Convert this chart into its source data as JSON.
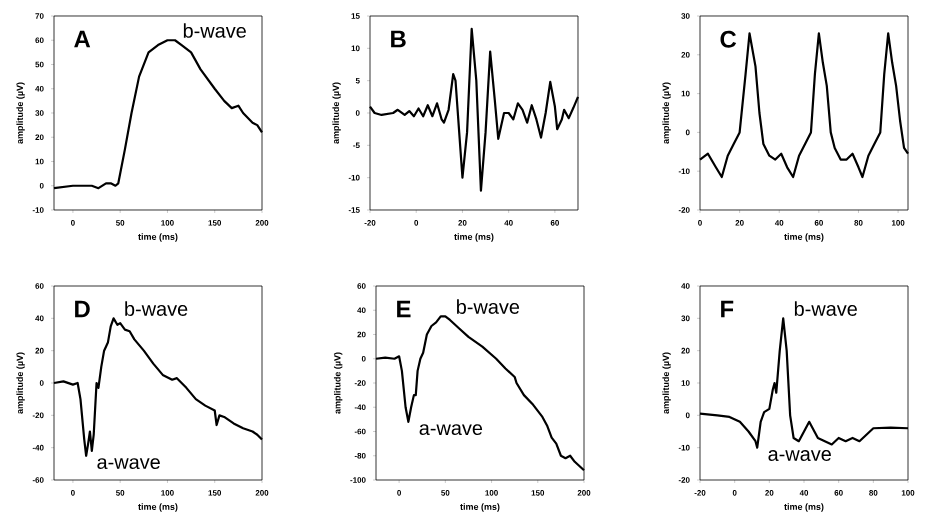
{
  "chart_data": [
    {
      "type": "line",
      "title": "A",
      "xlabel": "time (ms)",
      "ylabel": "amplitude (µV)",
      "color": "#000000",
      "xlim": [
        -20,
        200
      ],
      "xticks": [
        0,
        50,
        100,
        150,
        200
      ],
      "ylim": [
        -10,
        70
      ],
      "yticks": [
        -10,
        0,
        10,
        20,
        30,
        40,
        50,
        60,
        70
      ],
      "x": [
        -20,
        0,
        20,
        27,
        35,
        40,
        45,
        48,
        55,
        62,
        70,
        80,
        90,
        100,
        108,
        115,
        125,
        135,
        150,
        160,
        168,
        175,
        180,
        190,
        195,
        200
      ],
      "values": [
        -1,
        0,
        0,
        -1,
        1,
        1,
        0,
        1,
        15,
        30,
        45,
        55,
        58,
        60,
        60,
        58,
        55,
        48,
        40,
        35,
        32,
        33,
        30,
        26,
        25,
        22
      ],
      "annotations": [
        {
          "text": "b-wave",
          "x": 105,
          "y": 60
        }
      ]
    },
    {
      "type": "line",
      "title": "B",
      "xlabel": "time (ms)",
      "ylabel": "amplitude (µV)",
      "color": "#000000",
      "xlim": [
        -20,
        70
      ],
      "xticks": [
        -20,
        0,
        20,
        40,
        60
      ],
      "ylim": [
        -15,
        15
      ],
      "yticks": [
        -15,
        -10,
        -5,
        0,
        5,
        10,
        15
      ],
      "x": [
        -20,
        -18,
        -15,
        -10,
        -8,
        -5,
        -3,
        -1,
        1,
        3,
        5,
        7,
        9,
        11,
        12,
        14,
        16,
        17,
        19,
        20,
        22,
        24,
        26,
        28,
        30,
        32,
        34,
        35.5,
        38,
        40,
        42,
        44,
        46,
        48,
        50,
        52,
        54,
        56,
        58,
        60,
        61,
        63,
        64,
        66,
        68,
        70
      ],
      "values": [
        1,
        0,
        -0.3,
        0,
        0.5,
        -0.3,
        0.3,
        -0.5,
        0.7,
        -0.5,
        1.2,
        -0.5,
        1.5,
        -1,
        -1.5,
        0.5,
        6,
        5,
        -5,
        -10,
        -3,
        13,
        5,
        -12,
        -3,
        9.5,
        2,
        -4,
        0,
        0,
        -1,
        1.5,
        0.5,
        -1.5,
        1.2,
        -1,
        -3.8,
        0,
        4.8,
        1,
        -2.5,
        -1,
        0.5,
        -0.8,
        0.8,
        2.5
      ]
    },
    {
      "type": "line",
      "title": "C",
      "xlabel": "time (ms)",
      "ylabel": "amplitude (µV)",
      "color": "#000000",
      "xlim": [
        0,
        105
      ],
      "xticks": [
        0,
        20,
        40,
        60,
        80,
        100
      ],
      "ylim": [
        -20,
        30
      ],
      "yticks": [
        -20,
        -10,
        0,
        10,
        20,
        30
      ],
      "x": [
        0,
        4,
        8,
        11,
        14,
        17,
        20,
        23,
        25,
        28,
        30,
        32,
        35,
        38,
        41,
        44,
        47,
        50,
        53,
        56,
        58,
        60,
        62,
        64,
        66,
        68,
        71,
        74,
        77,
        80,
        82,
        85,
        88,
        91,
        93,
        95,
        97,
        99,
        101,
        103,
        105
      ],
      "values": [
        -7,
        -5.5,
        -9,
        -11.5,
        -6,
        -3,
        0,
        15,
        25.5,
        17,
        5,
        -3,
        -6,
        -7,
        -5.5,
        -9,
        -11.5,
        -6,
        -3,
        0,
        15,
        25.5,
        18,
        12,
        0,
        -4,
        -7,
        -7,
        -5.5,
        -9,
        -11.5,
        -6,
        -3,
        0,
        15,
        25.5,
        18,
        12,
        3,
        -4,
        -5.5
      ]
    },
    {
      "type": "line",
      "title": "D",
      "xlabel": "time (ms)",
      "ylabel": "amplitude (µV)",
      "color": "#000000",
      "xlim": [
        -20,
        200
      ],
      "xticks": [
        0,
        50,
        100,
        150,
        200
      ],
      "ylim": [
        -60,
        60
      ],
      "yticks": [
        -60,
        -40,
        -20,
        0,
        20,
        40,
        60
      ],
      "x": [
        -20,
        -10,
        0,
        5,
        8,
        12,
        14,
        16,
        18,
        20,
        22,
        25,
        27,
        30,
        33,
        37,
        40,
        43,
        47,
        50,
        55,
        60,
        65,
        75,
        85,
        95,
        105,
        110,
        120,
        130,
        140,
        150,
        152,
        155,
        160,
        170,
        180,
        190,
        195,
        200
      ],
      "values": [
        0,
        1,
        -1,
        0,
        -10,
        -35,
        -45,
        -38,
        -30,
        -42,
        -32,
        0,
        -3,
        10,
        20,
        25,
        35,
        40,
        36,
        37,
        33,
        32,
        27,
        20,
        12,
        5,
        2,
        3,
        -3,
        -10,
        -14,
        -17,
        -26,
        -20,
        -21,
        -25,
        -28,
        -30,
        -32,
        -35
      ],
      "annotations": [
        {
          "text": "b-wave",
          "x": 43,
          "y": 40
        },
        {
          "text": "a-wave",
          "x": 14,
          "y": -45
        }
      ]
    },
    {
      "type": "line",
      "title": "E",
      "xlabel": "time (ms)",
      "ylabel": "amplitude (µV)",
      "color": "#000000",
      "xlim": [
        -25,
        200
      ],
      "xticks": [
        0,
        50,
        100,
        150,
        200
      ],
      "ylim": [
        -100,
        60
      ],
      "yticks": [
        -100,
        -80,
        -60,
        -40,
        -20,
        0,
        20,
        40,
        60
      ],
      "x": [
        -25,
        -15,
        -5,
        0,
        3,
        7,
        10,
        13,
        16,
        18,
        20,
        23,
        26,
        30,
        35,
        40,
        45,
        50,
        55,
        65,
        75,
        90,
        105,
        115,
        125,
        127,
        135,
        145,
        155,
        160,
        165,
        170,
        175,
        180,
        185,
        190,
        200
      ],
      "values": [
        0,
        1,
        0,
        2,
        -10,
        -40,
        -52,
        -40,
        -30,
        -30,
        -10,
        0,
        5,
        20,
        27,
        30,
        35,
        35,
        32,
        25,
        18,
        10,
        0,
        -8,
        -15,
        -20,
        -30,
        -38,
        -48,
        -55,
        -65,
        -70,
        -80,
        -82,
        -80,
        -85,
        -92
      ],
      "annotations": [
        {
          "text": "b-wave",
          "x": 50,
          "y": 35
        },
        {
          "text": "a-wave",
          "x": 10,
          "y": -52
        }
      ]
    },
    {
      "type": "line",
      "title": "F",
      "xlabel": "time (ms)",
      "ylabel": "amplitude (µV)",
      "color": "#000000",
      "xlim": [
        -20,
        100
      ],
      "xticks": [
        -20,
        0,
        20,
        40,
        60,
        80,
        100
      ],
      "ylim": [
        -20,
        40
      ],
      "yticks": [
        -20,
        -10,
        0,
        10,
        20,
        30,
        40
      ],
      "x": [
        -20,
        -10,
        -3,
        3,
        8,
        12,
        13,
        15,
        17,
        20,
        22,
        23,
        24,
        26,
        28,
        30,
        32,
        34,
        37,
        40,
        43,
        45,
        48,
        52,
        56,
        60,
        64,
        68,
        72,
        76,
        80,
        90,
        100
      ],
      "values": [
        0.5,
        0,
        -0.5,
        -2,
        -5,
        -8,
        -10,
        -2,
        1,
        2,
        8,
        10,
        7,
        20,
        30,
        20,
        0,
        -7,
        -8,
        -5,
        -2,
        -4,
        -7,
        -8,
        -9,
        -7,
        -8,
        -7,
        -8,
        -6,
        -4,
        -3.8,
        -4
      ],
      "annotations": [
        {
          "text": "b-wave",
          "x": 28,
          "y": 30
        },
        {
          "text": "a-wave",
          "x": 13,
          "y": -10
        }
      ]
    }
  ]
}
